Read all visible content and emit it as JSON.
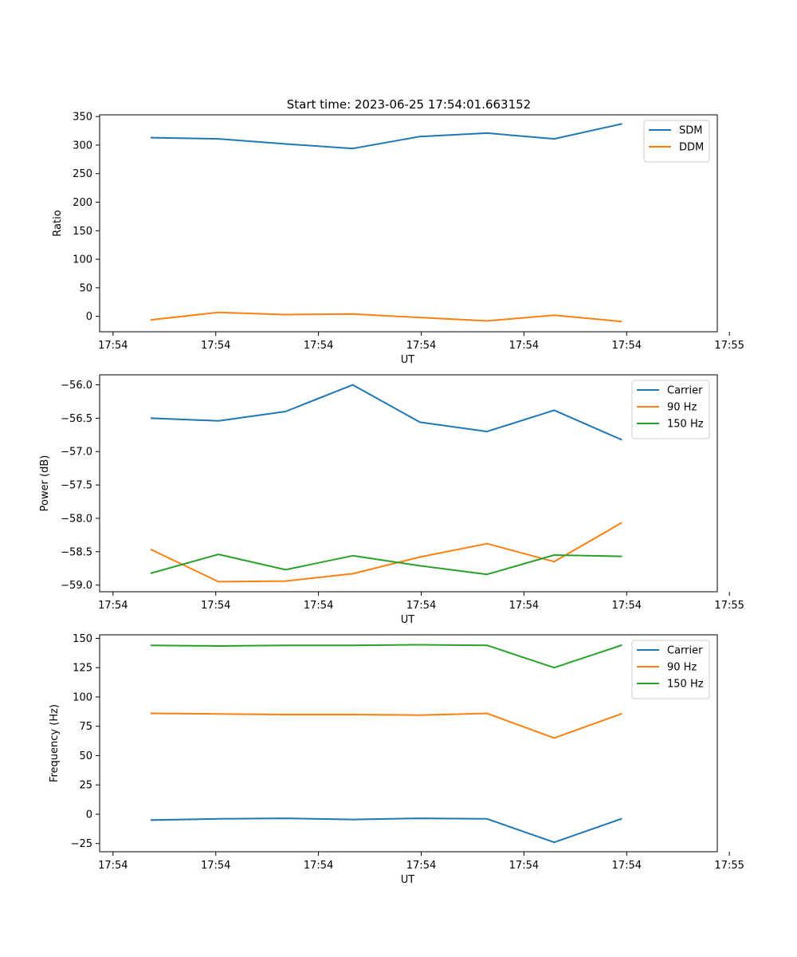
{
  "figure": {
    "title": "Start time: 2023-06-25 17:54:01.663152"
  },
  "chart_data": [
    {
      "type": "line",
      "title": "Start time: 2023-06-25 17:54:01.663152",
      "xlabel": "UT",
      "ylabel": "Ratio",
      "x": [
        1,
        2,
        3,
        4,
        5,
        6,
        7,
        8
      ],
      "xlim": [
        0.23,
        9.43
      ],
      "x_ticks": [
        0.43,
        1.96,
        3.49,
        5.02,
        6.55,
        8.08,
        9.61
      ],
      "x_tick_labels": [
        "17:54",
        "17:54",
        "17:54",
        "17:54",
        "17:54",
        "17:54",
        "17:55"
      ],
      "ylim": [
        -27,
        353
      ],
      "y_ticks": [
        0,
        50,
        100,
        150,
        200,
        250,
        300,
        350
      ],
      "y_tick_labels": [
        "0",
        "50",
        "100",
        "150",
        "200",
        "250",
        "300",
        "350"
      ],
      "legend": "top-right",
      "grid": false,
      "series": [
        {
          "name": "SDM",
          "color": "#1f77b4",
          "values": [
            313,
            311,
            302,
            294,
            315,
            321,
            311,
            337
          ]
        },
        {
          "name": "DDM",
          "color": "#ff7f0e",
          "values": [
            -6,
            7,
            3,
            4,
            -2,
            -8,
            2,
            -9
          ]
        }
      ]
    },
    {
      "type": "line",
      "xlabel": "UT",
      "ylabel": "Power (dB)",
      "x": [
        1,
        2,
        3,
        4,
        5,
        6,
        7,
        8
      ],
      "xlim": [
        0.23,
        9.43
      ],
      "x_ticks": [
        0.43,
        1.96,
        3.49,
        5.02,
        6.55,
        8.08,
        9.61
      ],
      "x_tick_labels": [
        "17:54",
        "17:54",
        "17:54",
        "17:54",
        "17:54",
        "17:54",
        "17:55"
      ],
      "ylim": [
        -59.1,
        -55.85
      ],
      "y_ticks": [
        -59.0,
        -58.5,
        -58.0,
        -57.5,
        -57.0,
        -56.5,
        -56.0
      ],
      "y_tick_labels": [
        "−59.0",
        "−58.5",
        "−58.0",
        "−57.5",
        "−57.0",
        "−56.5",
        "−56.0"
      ],
      "legend": "top-right",
      "grid": false,
      "series": [
        {
          "name": "Carrier",
          "color": "#1f77b4",
          "values": [
            -56.5,
            -56.54,
            -56.4,
            -56.0,
            -56.56,
            -56.7,
            -56.38,
            -56.82
          ]
        },
        {
          "name": "90 Hz",
          "color": "#ff7f0e",
          "values": [
            -58.47,
            -58.95,
            -58.94,
            -58.83,
            -58.58,
            -58.38,
            -58.65,
            -58.07
          ]
        },
        {
          "name": "150 Hz",
          "color": "#2ca02c",
          "values": [
            -58.82,
            -58.54,
            -58.77,
            -58.56,
            -58.71,
            -58.84,
            -58.55,
            -58.57
          ]
        }
      ]
    },
    {
      "type": "line",
      "xlabel": "UT",
      "ylabel": "Frequency (Hz)",
      "x": [
        1,
        2,
        3,
        4,
        5,
        6,
        7,
        8
      ],
      "xlim": [
        0.23,
        9.43
      ],
      "x_ticks": [
        0.43,
        1.96,
        3.49,
        5.02,
        6.55,
        8.08,
        9.61
      ],
      "x_tick_labels": [
        "17:54",
        "17:54",
        "17:54",
        "17:54",
        "17:54",
        "17:54",
        "17:55"
      ],
      "ylim": [
        -32,
        153
      ],
      "y_ticks": [
        -25,
        0,
        25,
        50,
        75,
        100,
        125,
        150
      ],
      "y_tick_labels": [
        "−25",
        "0",
        "25",
        "50",
        "75",
        "100",
        "125",
        "150"
      ],
      "legend": "top-right",
      "grid": false,
      "series": [
        {
          "name": "Carrier",
          "color": "#1f77b4",
          "values": [
            -5,
            -4,
            -3.5,
            -4.5,
            -3.5,
            -4,
            -24,
            -4
          ]
        },
        {
          "name": "90 Hz",
          "color": "#ff7f0e",
          "values": [
            86,
            85.5,
            85,
            85,
            84.5,
            86,
            65,
            85.5
          ]
        },
        {
          "name": "150 Hz",
          "color": "#2ca02c",
          "values": [
            144,
            143.5,
            144,
            144,
            144.5,
            144,
            125,
            144
          ]
        }
      ]
    }
  ]
}
